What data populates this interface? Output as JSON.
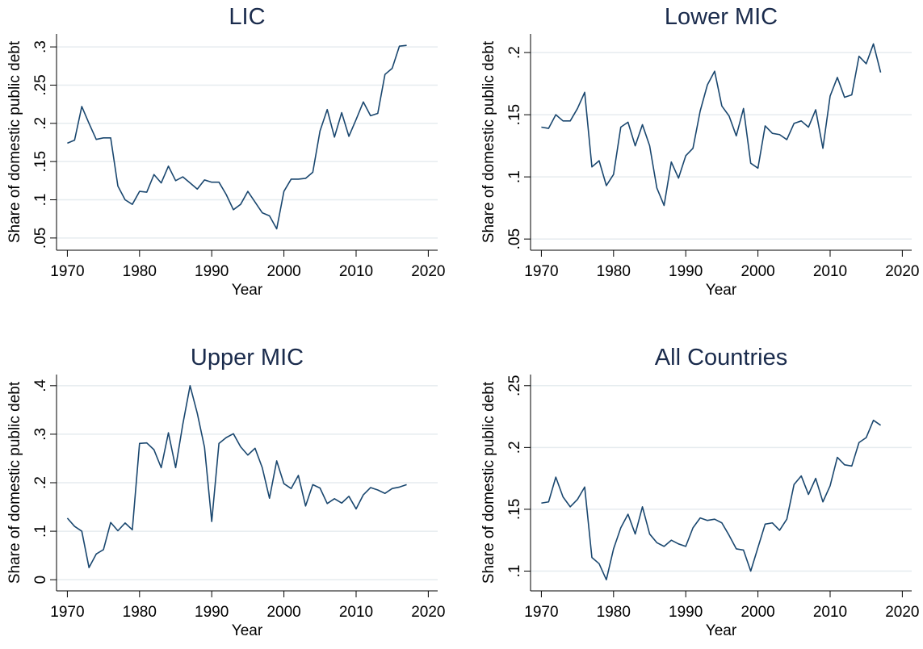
{
  "chart_data": [
    {
      "type": "line",
      "title": "LIC",
      "x_label": "Year",
      "y_label": "Share of domestic public debt",
      "grid": true,
      "x": [
        1970,
        1971,
        1972,
        1973,
        1974,
        1975,
        1976,
        1977,
        1978,
        1979,
        1980,
        1981,
        1982,
        1983,
        1984,
        1985,
        1986,
        1987,
        1988,
        1989,
        1990,
        1991,
        1992,
        1993,
        1994,
        1995,
        1996,
        1997,
        1998,
        1999,
        2000,
        2001,
        2002,
        2003,
        2004,
        2005,
        2006,
        2007,
        2008,
        2009,
        2010,
        2011,
        2012,
        2013,
        2014,
        2015,
        2016,
        2017
      ],
      "series": [
        {
          "color": "#1a476f",
          "values": [
            0.174,
            0.178,
            0.222,
            0.2,
            0.179,
            0.181,
            0.181,
            0.118,
            0.1,
            0.094,
            0.111,
            0.11,
            0.133,
            0.122,
            0.144,
            0.125,
            0.13,
            0.122,
            0.114,
            0.126,
            0.123,
            0.123,
            0.107,
            0.087,
            0.094,
            0.111,
            0.097,
            0.083,
            0.079,
            0.062,
            0.111,
            0.127,
            0.127,
            0.128,
            0.136,
            0.19,
            0.218,
            0.182,
            0.214,
            0.183,
            0.205,
            0.228,
            0.21,
            0.213,
            0.264,
            0.272,
            0.301,
            0.302
          ]
        }
      ],
      "xlim": [
        1968.5,
        2021.3
      ],
      "xticks": [
        1970,
        1980,
        1990,
        2000,
        2010,
        2020
      ],
      "ylim": [
        0.034,
        0.317
      ],
      "yticks": [
        {
          "value": 0.05,
          "label": ".05"
        },
        {
          "value": 0.1,
          "label": ".1"
        },
        {
          "value": 0.15,
          "label": ".15"
        },
        {
          "value": 0.2,
          "label": ".2"
        },
        {
          "value": 0.25,
          "label": ".25"
        },
        {
          "value": 0.3,
          "label": ".3"
        }
      ]
    },
    {
      "type": "line",
      "title": "Lower MIC",
      "x_label": "Year",
      "y_label": "Share of domestic public debt",
      "grid": true,
      "x": [
        1970,
        1971,
        1972,
        1973,
        1974,
        1975,
        1976,
        1977,
        1978,
        1979,
        1980,
        1981,
        1982,
        1983,
        1984,
        1985,
        1986,
        1987,
        1988,
        1989,
        1990,
        1991,
        1992,
        1993,
        1994,
        1995,
        1996,
        1997,
        1998,
        1999,
        2000,
        2001,
        2002,
        2003,
        2004,
        2005,
        2006,
        2007,
        2008,
        2009,
        2010,
        2011,
        2012,
        2013,
        2014,
        2015,
        2016,
        2017
      ],
      "series": [
        {
          "color": "#1a476f",
          "values": [
            0.14,
            0.139,
            0.15,
            0.145,
            0.145,
            0.155,
            0.168,
            0.108,
            0.113,
            0.093,
            0.102,
            0.14,
            0.144,
            0.125,
            0.142,
            0.125,
            0.091,
            0.077,
            0.112,
            0.099,
            0.117,
            0.123,
            0.153,
            0.174,
            0.185,
            0.157,
            0.149,
            0.133,
            0.155,
            0.111,
            0.107,
            0.141,
            0.135,
            0.134,
            0.13,
            0.143,
            0.145,
            0.14,
            0.154,
            0.123,
            0.165,
            0.18,
            0.164,
            0.166,
            0.197,
            0.191,
            0.207,
            0.184
          ]
        }
      ],
      "xlim": [
        1968.5,
        2021.3
      ],
      "xticks": [
        1970,
        1980,
        1990,
        2000,
        2010,
        2020
      ],
      "ylim": [
        0.041,
        0.215
      ],
      "yticks": [
        {
          "value": 0.05,
          "label": ".05"
        },
        {
          "value": 0.1,
          "label": ".1"
        },
        {
          "value": 0.15,
          "label": ".15"
        },
        {
          "value": 0.2,
          "label": ".2"
        }
      ]
    },
    {
      "type": "line",
      "title": "Upper MIC",
      "x_label": "Year",
      "y_label": "Share of domestic public debt",
      "grid": true,
      "x": [
        1970,
        1971,
        1972,
        1973,
        1974,
        1975,
        1976,
        1977,
        1978,
        1979,
        1980,
        1981,
        1982,
        1983,
        1984,
        1985,
        1986,
        1987,
        1988,
        1989,
        1990,
        1991,
        1992,
        1993,
        1994,
        1995,
        1996,
        1997,
        1998,
        1999,
        2000,
        2001,
        2002,
        2003,
        2004,
        2005,
        2006,
        2007,
        2008,
        2009,
        2010,
        2011,
        2012,
        2013,
        2014,
        2015,
        2016,
        2017
      ],
      "series": [
        {
          "color": "#1a476f",
          "values": [
            0.127,
            0.11,
            0.1,
            0.025,
            0.053,
            0.062,
            0.118,
            0.101,
            0.117,
            0.103,
            0.281,
            0.282,
            0.268,
            0.231,
            0.303,
            0.231,
            0.321,
            0.4,
            0.343,
            0.273,
            0.12,
            0.281,
            0.293,
            0.301,
            0.274,
            0.257,
            0.271,
            0.231,
            0.168,
            0.245,
            0.198,
            0.188,
            0.215,
            0.152,
            0.196,
            0.189,
            0.157,
            0.167,
            0.158,
            0.172,
            0.146,
            0.175,
            0.19,
            0.185,
            0.178,
            0.188,
            0.191,
            0.196
          ]
        }
      ],
      "xlim": [
        1968.5,
        2021.3
      ],
      "xticks": [
        1970,
        1980,
        1990,
        2000,
        2010,
        2020
      ],
      "ylim": [
        -0.023,
        0.423
      ],
      "yticks": [
        0,
        {
          "value": 0.1,
          "label": ".1"
        },
        {
          "value": 0.2,
          "label": ".2"
        },
        {
          "value": 0.3,
          "label": ".3"
        },
        {
          "value": 0.4,
          "label": ".4"
        }
      ]
    },
    {
      "type": "line",
      "title": "All Countries",
      "x_label": "Year",
      "y_label": "Share of domestic public debt",
      "grid": true,
      "x": [
        1970,
        1971,
        1972,
        1973,
        1974,
        1975,
        1976,
        1977,
        1978,
        1979,
        1980,
        1981,
        1982,
        1983,
        1984,
        1985,
        1986,
        1987,
        1988,
        1989,
        1990,
        1991,
        1992,
        1993,
        1994,
        1995,
        1996,
        1997,
        1998,
        1999,
        2000,
        2001,
        2002,
        2003,
        2004,
        2005,
        2006,
        2007,
        2008,
        2009,
        2010,
        2011,
        2012,
        2013,
        2014,
        2015,
        2016,
        2017
      ],
      "series": [
        {
          "color": "#1a476f",
          "values": [
            0.155,
            0.156,
            0.176,
            0.16,
            0.152,
            0.158,
            0.168,
            0.111,
            0.106,
            0.093,
            0.118,
            0.135,
            0.146,
            0.13,
            0.152,
            0.13,
            0.123,
            0.12,
            0.125,
            0.122,
            0.12,
            0.135,
            0.143,
            0.141,
            0.142,
            0.139,
            0.129,
            0.118,
            0.117,
            0.1,
            0.119,
            0.138,
            0.139,
            0.133,
            0.142,
            0.17,
            0.177,
            0.162,
            0.175,
            0.156,
            0.169,
            0.192,
            0.186,
            0.185,
            0.204,
            0.208,
            0.222,
            0.218
          ]
        }
      ],
      "xlim": [
        1968.5,
        2021.3
      ],
      "xticks": [
        1970,
        1980,
        1990,
        2000,
        2010,
        2020
      ],
      "ylim": [
        0.084,
        0.259
      ],
      "yticks": [
        {
          "value": 0.1,
          "label": ".1"
        },
        {
          "value": 0.15,
          "label": ".15"
        },
        {
          "value": 0.2,
          "label": ".2"
        },
        {
          "value": 0.25,
          "label": ".25"
        }
      ]
    }
  ]
}
